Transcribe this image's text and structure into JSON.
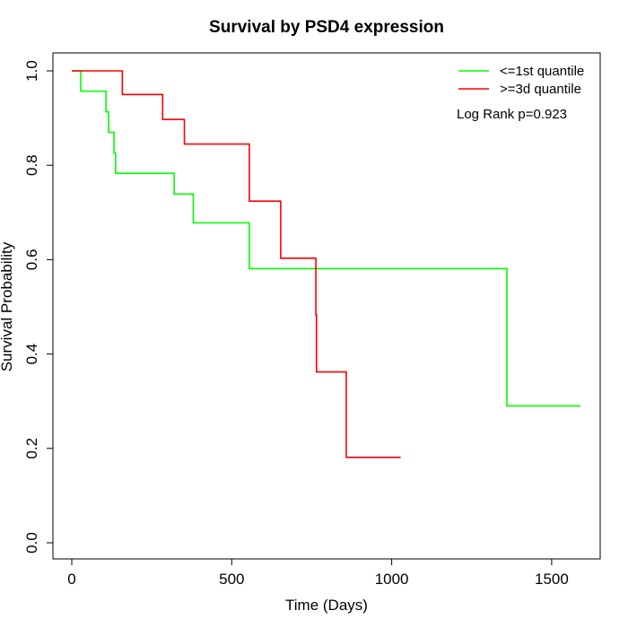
{
  "chart_data": {
    "type": "line",
    "title": "Survival by PSD4 expression",
    "xlabel": "Time (Days)",
    "ylabel": "Survival Probability",
    "xlim": [
      0,
      1590
    ],
    "ylim": [
      0,
      1
    ],
    "x_ticks": [
      0,
      500,
      1000,
      1500
    ],
    "y_ticks": [
      0.0,
      0.2,
      0.4,
      0.6,
      0.8,
      1.0
    ],
    "x_tick_labels": [
      "0",
      "500",
      "1000",
      "1500"
    ],
    "y_tick_labels": [
      "0.0",
      "0.2",
      "0.4",
      "0.6",
      "0.8",
      "1.0"
    ],
    "grid": false,
    "legend_position": "top-right",
    "annotation": "Log Rank p=0.923",
    "series": [
      {
        "name": "<=1st quantile",
        "color": "#00ff00",
        "x": [
          0,
          28,
          107,
          115,
          132,
          137,
          320,
          380,
          555,
          1360,
          1590
        ],
        "y": [
          1.0,
          0.957,
          0.913,
          0.87,
          0.826,
          0.783,
          0.739,
          0.678,
          0.581,
          0.29,
          0.29
        ]
      },
      {
        "name": ">=3d quantile",
        "color": "#ff0000",
        "x": [
          0,
          158,
          284,
          352,
          555,
          653,
          763,
          765,
          858,
          1028
        ],
        "y": [
          1.0,
          0.95,
          0.897,
          0.845,
          0.724,
          0.603,
          0.483,
          0.362,
          0.181,
          0.181
        ]
      }
    ]
  }
}
